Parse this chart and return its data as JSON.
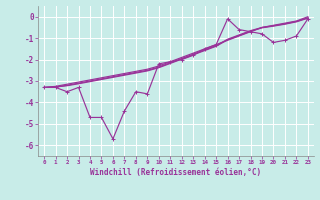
{
  "xlabel": "Windchill (Refroidissement éolien,°C)",
  "bg_color": "#c8ece8",
  "grid_color": "#aed8d4",
  "line_color": "#993399",
  "x_data": [
    0,
    1,
    2,
    3,
    4,
    5,
    6,
    7,
    8,
    9,
    10,
    11,
    12,
    13,
    14,
    15,
    16,
    17,
    18,
    19,
    20,
    21,
    22,
    23
  ],
  "y_main": [
    -3.3,
    -3.3,
    -3.5,
    -3.3,
    -4.7,
    -4.7,
    -5.7,
    -4.4,
    -3.5,
    -3.6,
    -2.2,
    -2.1,
    -2.0,
    -1.8,
    -1.5,
    -1.3,
    -0.1,
    -0.6,
    -0.7,
    -0.8,
    -1.2,
    -1.1,
    -0.9,
    -0.1
  ],
  "y_line1": [
    -3.3,
    -3.25,
    -3.15,
    -3.05,
    -2.95,
    -2.85,
    -2.75,
    -2.65,
    -2.55,
    -2.45,
    -2.3,
    -2.1,
    -1.9,
    -1.7,
    -1.5,
    -1.3,
    -1.1,
    -0.9,
    -0.7,
    -0.5,
    -0.4,
    -0.3,
    -0.2,
    0.0
  ],
  "y_line2": [
    -3.3,
    -3.28,
    -3.2,
    -3.1,
    -3.0,
    -2.9,
    -2.8,
    -2.7,
    -2.6,
    -2.5,
    -2.35,
    -2.15,
    -1.95,
    -1.75,
    -1.55,
    -1.35,
    -1.05,
    -0.85,
    -0.65,
    -0.5,
    -0.42,
    -0.33,
    -0.22,
    -0.05
  ],
  "y_line3": [
    -3.3,
    -3.28,
    -3.22,
    -3.13,
    -3.03,
    -2.93,
    -2.83,
    -2.73,
    -2.63,
    -2.53,
    -2.38,
    -2.18,
    -1.98,
    -1.78,
    -1.58,
    -1.38,
    -1.08,
    -0.88,
    -0.68,
    -0.52,
    -0.44,
    -0.35,
    -0.24,
    -0.07
  ],
  "ylim": [
    -6.5,
    0.5
  ],
  "xlim": [
    -0.5,
    23.5
  ],
  "yticks": [
    0,
    -1,
    -2,
    -3,
    -4,
    -5,
    -6
  ],
  "xticks": [
    0,
    1,
    2,
    3,
    4,
    5,
    6,
    7,
    8,
    9,
    10,
    11,
    12,
    13,
    14,
    15,
    16,
    17,
    18,
    19,
    20,
    21,
    22,
    23
  ]
}
